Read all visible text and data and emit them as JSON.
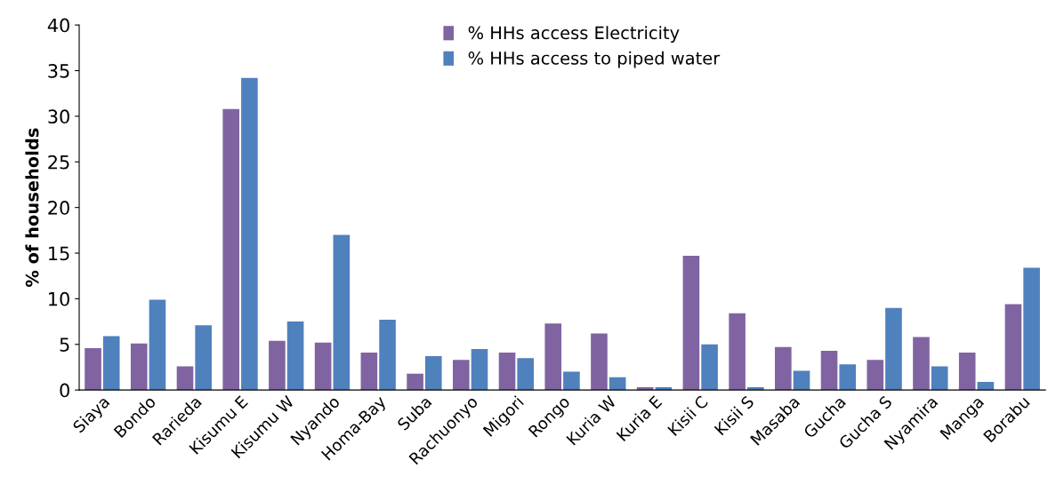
{
  "chart_data": {
    "type": "bar",
    "ylabel": "% of households",
    "categories": [
      "Siaya",
      "Bondo",
      "Rarieda",
      "Kisumu E",
      "Kisumu W",
      "Nyando",
      "Homa-Bay",
      "Suba",
      "Rachuonyo",
      "Migori",
      "Rongo",
      "Kuria W",
      "Kuria E",
      "Kisii C",
      "Kisii S",
      "Masaba",
      "Gucha",
      "Gucha S",
      "Nyamira",
      "Manga",
      "Borabu"
    ],
    "series": [
      {
        "name": "% HHs access Electricity",
        "color": "#8064a2",
        "values": [
          4.6,
          5.1,
          2.6,
          30.8,
          5.4,
          5.2,
          4.1,
          1.8,
          3.3,
          4.1,
          7.3,
          6.2,
          0.3,
          14.7,
          8.4,
          4.7,
          4.3,
          3.3,
          5.8,
          4.1,
          9.4
        ]
      },
      {
        "name": "% HHs access to piped water",
        "color": "#4f81bd",
        "values": [
          5.9,
          9.9,
          7.1,
          34.2,
          7.5,
          17.0,
          7.7,
          3.7,
          4.5,
          3.5,
          2.0,
          1.4,
          0.3,
          5.0,
          0.3,
          2.1,
          2.8,
          9.0,
          2.6,
          0.9,
          13.4
        ]
      }
    ],
    "ylim": [
      0,
      40
    ],
    "yticks": [
      0,
      5,
      10,
      15,
      20,
      25,
      30,
      35,
      40
    ],
    "grid": false,
    "legend": "top"
  }
}
